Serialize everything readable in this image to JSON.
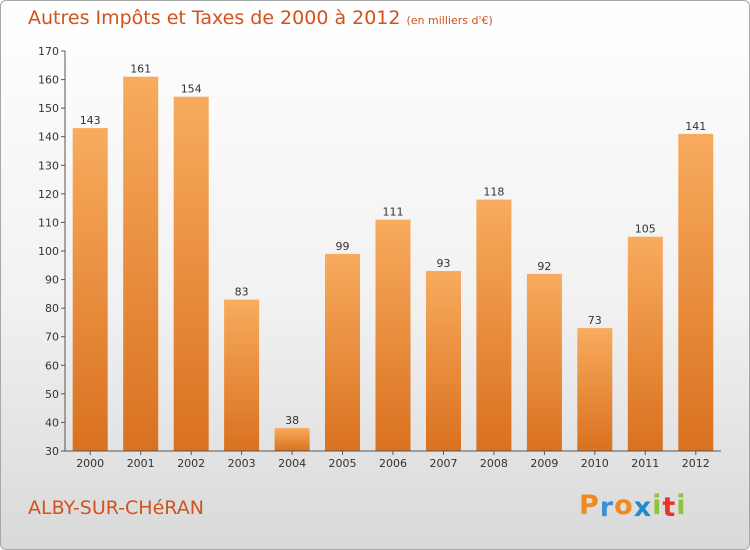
{
  "header": {
    "title": "Autres Impôts et Taxes de 2000 à 2012",
    "subtitle": "(en milliers d'€)"
  },
  "footer": {
    "commune": "ALBY-SUR-CHéRAN",
    "logo": {
      "letters": [
        "P",
        "r",
        "o",
        "x",
        "i",
        "t",
        "i"
      ],
      "colors": [
        "#f08a1c",
        "#3a8fd6",
        "#f08a1c",
        "#1f8cd0",
        "#8cc63f",
        "#e8332a",
        "#8cc63f"
      ]
    }
  },
  "chart_data": {
    "type": "bar",
    "categories": [
      "2000",
      "2001",
      "2002",
      "2003",
      "2004",
      "2005",
      "2006",
      "2007",
      "2008",
      "2009",
      "2010",
      "2011",
      "2012"
    ],
    "values": [
      143,
      161,
      154,
      83,
      38,
      99,
      111,
      93,
      118,
      92,
      73,
      105,
      141
    ],
    "title": "Autres Impôts et Taxes de 2000 à 2012",
    "xlabel": "",
    "ylabel": "",
    "ylim": [
      30,
      170
    ],
    "yticks": [
      30,
      40,
      50,
      60,
      70,
      80,
      90,
      100,
      110,
      120,
      130,
      140,
      150,
      160,
      170
    ],
    "grid": false,
    "legend": "none",
    "colors": {
      "bar_light": "#f8ab5e",
      "bar_dark": "#d9711f",
      "axis": "#555555"
    }
  }
}
